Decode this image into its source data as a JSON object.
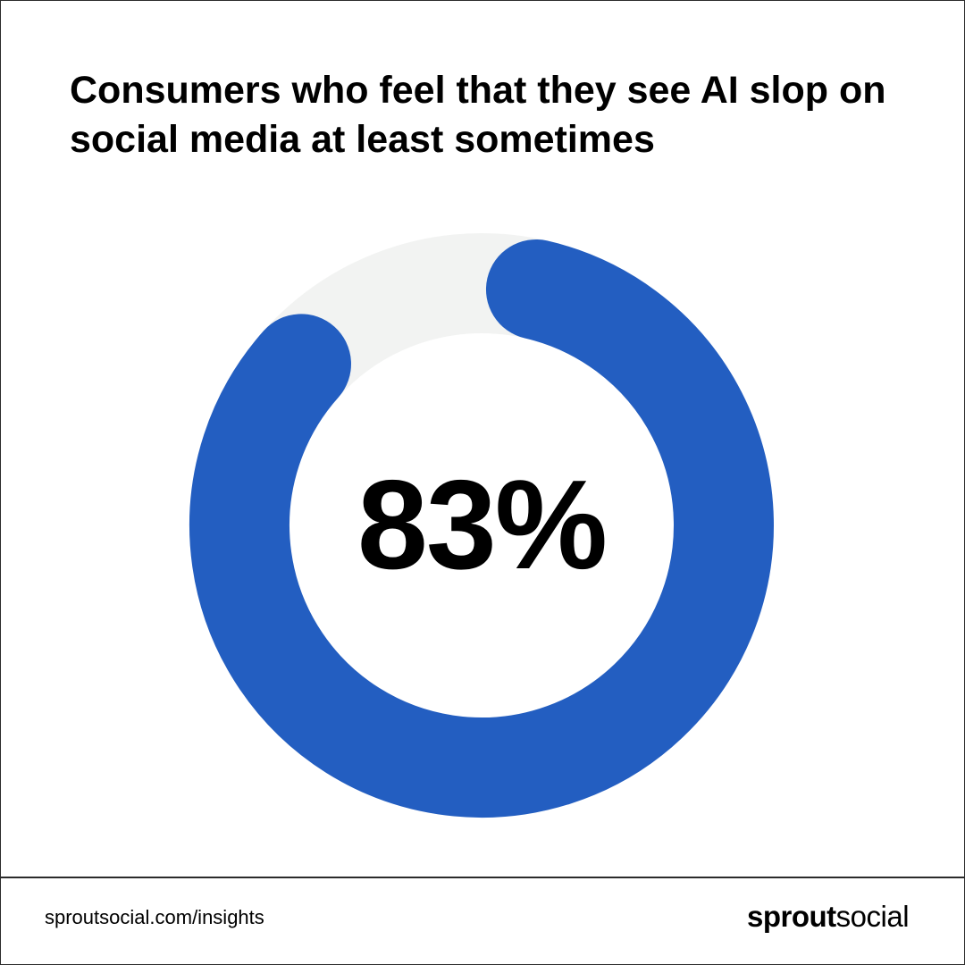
{
  "chart_data": {
    "type": "pie",
    "title": "Consumers who feel that they see AI slop on social media at least sometimes",
    "value_percent": 83,
    "value_label": "83%",
    "colors": {
      "value": "#235EC1",
      "remainder": "#F2F3F2"
    }
  },
  "footer": {
    "source": "sproutsocial.com/insights",
    "logo_bold": "sprout",
    "logo_light": "social"
  }
}
